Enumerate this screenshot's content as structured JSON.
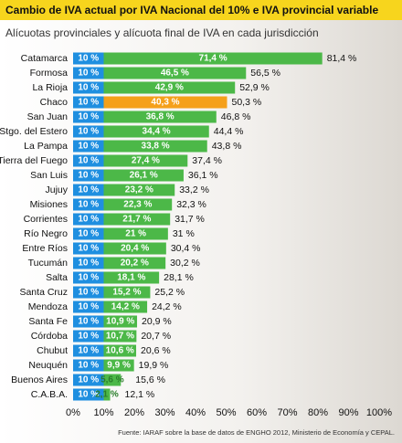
{
  "chart_data": {
    "type": "stacked-barh",
    "title": "Cambio de IVA actual por IVA Nacional del 10% e IVA provincial variable",
    "subtitle": "Alícuotas provinciales y alícuota final de IVA en cada jurisdicción",
    "source": "Fuente: IARAF sobre la base de datos de ENGHO 2012, Ministerio de Economía y CEPAL.",
    "categories": [
      "Catamarca",
      "Formosa",
      "La Rioja",
      "Chaco",
      "San Juan",
      "Stgo. del Estero",
      "La Pampa",
      "Tierra del Fuego",
      "San Luis",
      "Jujuy",
      "Misiones",
      "Corrientes",
      "Río Negro",
      "Entre Ríos",
      "Tucumán",
      "Salta",
      "Santa Cruz",
      "Mendoza",
      "Santa Fe",
      "Córdoba",
      "Chubut",
      "Neuquén",
      "Buenos Aires",
      "C.A.B.A."
    ],
    "series": [
      {
        "color": "#1f8fe0",
        "values": [
          10,
          10,
          10,
          10,
          10,
          10,
          10,
          10,
          10,
          10,
          10,
          10,
          10,
          10,
          10,
          10,
          10,
          10,
          10,
          10,
          10,
          10,
          10,
          10
        ],
        "value_labels": [
          "10 %",
          "10 %",
          "10 %",
          "10 %",
          "10 %",
          "10 %",
          "10 %",
          "10 %",
          "10 %",
          "10 %",
          "10 %",
          "10 %",
          "10 %",
          "10 %",
          "10 %",
          "10 %",
          "10 %",
          "10 %",
          "10 %",
          "10 %",
          "10 %",
          "10 %",
          "10 %",
          "10 %"
        ]
      },
      {
        "color": "#4cb848",
        "colors": [
          "#4cb848",
          "#4cb848",
          "#4cb848",
          "#f5a01a",
          "#4cb848",
          "#4cb848",
          "#4cb848",
          "#4cb848",
          "#4cb848",
          "#4cb848",
          "#4cb848",
          "#4cb848",
          "#4cb848",
          "#4cb848",
          "#4cb848",
          "#4cb848",
          "#4cb848",
          "#4cb848",
          "#4cb848",
          "#4cb848",
          "#4cb848",
          "#4cb848",
          "#4cb848",
          "#4cb848"
        ],
        "values": [
          71.4,
          46.5,
          42.9,
          40.3,
          36.8,
          34.4,
          33.8,
          27.4,
          26.1,
          23.2,
          22.3,
          21.7,
          21,
          20.4,
          20.2,
          18.1,
          15.2,
          14.2,
          10.9,
          10.7,
          10.6,
          9.9,
          5.6,
          2.1
        ],
        "value_labels": [
          "71,4 %",
          "46,5 %",
          "42,9 %",
          "40,3 %",
          "36,8 %",
          "34,4 %",
          "33,8 %",
          "27,4 %",
          "26,1 %",
          "23,2 %",
          "22,3 %",
          "21,7 %",
          "21 %",
          "20,4 %",
          "20,2 %",
          "18,1 %",
          "15,2 %",
          "14,2 %",
          "10,9 %",
          "10,7 %",
          "10,6 %",
          "9,9 %",
          "5,6 %",
          "2,1 %"
        ]
      }
    ],
    "total_labels": [
      "81,4 %",
      "56,5 %",
      "52,9 %",
      "50,3 %",
      "46,8 %",
      "44,4 %",
      "43,8 %",
      "37,4 %",
      "36,1 %",
      "33,2 %",
      "32,3 %",
      "31,7 %",
      "31 %",
      "30,4 %",
      "30,2 %",
      "28,1 %",
      "25,2 %",
      "24,2 %",
      "20,9 %",
      "20,7 %",
      "20,6 %",
      "19,9 %",
      "15,6 %",
      "12,1 %"
    ],
    "xlim": [
      0,
      100
    ],
    "xticks": [
      {
        "value": 0,
        "label": "0%"
      },
      {
        "value": 10,
        "label": "10%"
      },
      {
        "value": 20,
        "label": "20%"
      },
      {
        "value": 30,
        "label": "30%"
      },
      {
        "value": 40,
        "label": "40%"
      },
      {
        "value": 50,
        "label": "50%"
      },
      {
        "value": 60,
        "label": "60%"
      },
      {
        "value": 70,
        "label": "70%"
      },
      {
        "value": 80,
        "label": "80%"
      },
      {
        "value": 90,
        "label": "90%"
      },
      {
        "value": 100,
        "label": "100%"
      }
    ]
  }
}
